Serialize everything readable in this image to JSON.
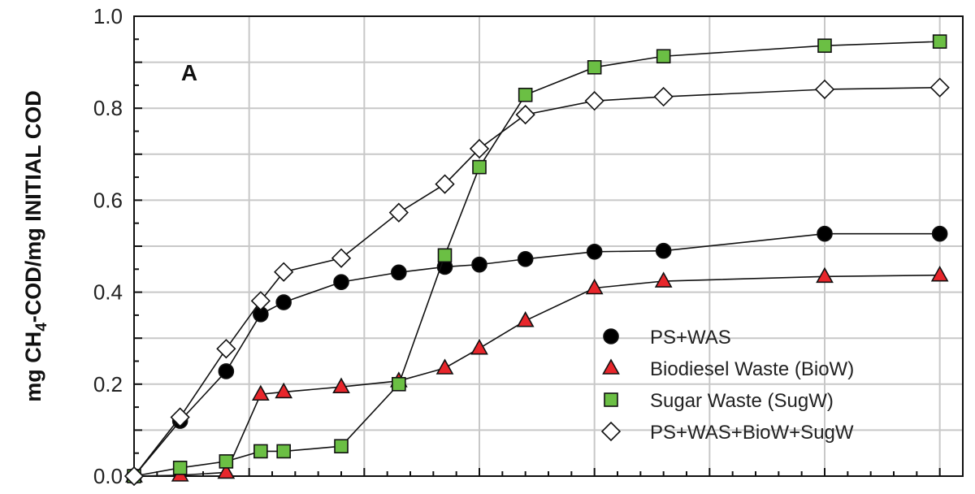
{
  "chart_data": {
    "type": "scatter",
    "panel_label": "A",
    "ylabel_parts": [
      "mg CH",
      "4",
      "-COD/mg INITIAL COD"
    ],
    "xlabel": "",
    "ylim": [
      0,
      1.0
    ],
    "xlim": [
      0,
      36
    ],
    "yticks": [
      "0.0",
      "0.2",
      "0.4",
      "0.6",
      "0.8",
      "1.0"
    ],
    "grid": true,
    "legend_position": "bottom-right",
    "series": [
      {
        "name": "PS+WAS",
        "marker": "circle",
        "color": "#000000",
        "x": [
          0,
          2,
          4,
          5.5,
          6.5,
          9,
          11.5,
          13.5,
          15,
          17,
          20,
          23,
          30,
          35
        ],
        "y": [
          0.0,
          0.12,
          0.228,
          0.352,
          0.378,
          0.422,
          0.443,
          0.455,
          0.46,
          0.472,
          0.488,
          0.49,
          0.527,
          0.527
        ]
      },
      {
        "name": "Biodiesel Waste (BioW)",
        "marker": "triangle",
        "color": "#e8262b",
        "x": [
          0,
          2,
          4,
          5.5,
          6.5,
          9,
          11.5,
          13.5,
          15,
          17,
          20,
          23,
          30,
          35
        ],
        "y": [
          0.0,
          0.002,
          0.008,
          0.178,
          0.183,
          0.194,
          0.207,
          0.235,
          0.278,
          0.338,
          0.409,
          0.424,
          0.434,
          0.437
        ]
      },
      {
        "name": "Sugar Waste (SugW)",
        "marker": "square",
        "color": "#6bbf44",
        "x": [
          0,
          2,
          4,
          5.5,
          6.5,
          9,
          11.5,
          13.5,
          15,
          17,
          20,
          23,
          30,
          35
        ],
        "y": [
          0.0,
          0.018,
          0.032,
          0.054,
          0.054,
          0.065,
          0.2,
          0.48,
          0.672,
          0.829,
          0.889,
          0.913,
          0.936,
          0.945
        ]
      },
      {
        "name": "PS+WAS+BioW+SugW",
        "marker": "diamond",
        "color": "#ffffff",
        "x": [
          0,
          2,
          4,
          5.5,
          6.5,
          9,
          11.5,
          13.5,
          15,
          17,
          20,
          23,
          30,
          35
        ],
        "y": [
          0.0,
          0.128,
          0.277,
          0.381,
          0.444,
          0.474,
          0.573,
          0.635,
          0.712,
          0.786,
          0.816,
          0.825,
          0.841,
          0.845
        ]
      }
    ]
  }
}
